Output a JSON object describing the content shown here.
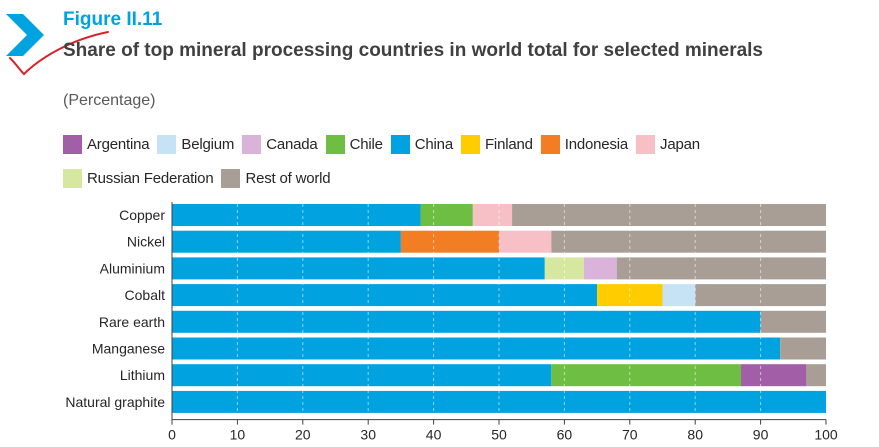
{
  "header": {
    "figure_label": "Figure II.11",
    "title": "Share of top mineral processing countries in world total for selected minerals",
    "subtitle": "(Percentage)"
  },
  "colors": {
    "accent": "#00a3e0",
    "annotation_mark": "#d9222a"
  },
  "chart_data": {
    "type": "bar",
    "orientation": "horizontal",
    "stacked": true,
    "title": "Share of top mineral processing countries in world total for selected minerals",
    "subtitle": "(Percentage)",
    "xlim": [
      0,
      100
    ],
    "xticks": [
      0,
      10,
      20,
      30,
      40,
      50,
      60,
      70,
      80,
      90,
      100
    ],
    "grid": "vertical dashed",
    "legend_position": "top",
    "categories": [
      "Copper",
      "Nickel",
      "Aluminium",
      "Cobalt",
      "Rare earth",
      "Manganese",
      "Lithium",
      "Natural graphite"
    ],
    "series": [
      {
        "name": "China",
        "color": "#00a3e0",
        "values": [
          38,
          35,
          57,
          65,
          90,
          93,
          58,
          100
        ]
      },
      {
        "name": "Chile",
        "color": "#6fbe44",
        "values": [
          8,
          0,
          0,
          0,
          0,
          0,
          29,
          0
        ]
      },
      {
        "name": "Indonesia",
        "color": "#f37d22",
        "values": [
          0,
          15,
          0,
          0,
          0,
          0,
          0,
          0
        ]
      },
      {
        "name": "Russian  Federation",
        "color": "#d6e8a0",
        "values": [
          0,
          0,
          6,
          0,
          0,
          0,
          0,
          0
        ]
      },
      {
        "name": "Canada",
        "color": "#d9b3d9",
        "values": [
          0,
          0,
          5,
          0,
          0,
          0,
          0,
          0
        ]
      },
      {
        "name": "Finland",
        "color": "#ffcc00",
        "values": [
          0,
          0,
          0,
          10,
          0,
          0,
          0,
          0
        ]
      },
      {
        "name": "Belgium",
        "color": "#c6e2f5",
        "values": [
          0,
          0,
          0,
          5,
          0,
          0,
          0,
          0
        ]
      },
      {
        "name": "Argentina",
        "color": "#a25fa8",
        "values": [
          0,
          0,
          0,
          0,
          0,
          0,
          10,
          0
        ]
      },
      {
        "name": "Japan",
        "color": "#f7c0c6",
        "values": [
          6,
          8,
          0,
          0,
          0,
          0,
          0,
          0
        ]
      },
      {
        "name": "Rest of world",
        "color": "#a89e96",
        "values": [
          48,
          42,
          32,
          20,
          10,
          7,
          3,
          0
        ]
      }
    ],
    "legend": [
      [
        "Argentina",
        "Belgium",
        "Canada",
        "Chile",
        "China",
        "Finland",
        "Indonesia",
        "Japan"
      ],
      [
        "Russian  Federation",
        "Rest of world"
      ]
    ]
  }
}
